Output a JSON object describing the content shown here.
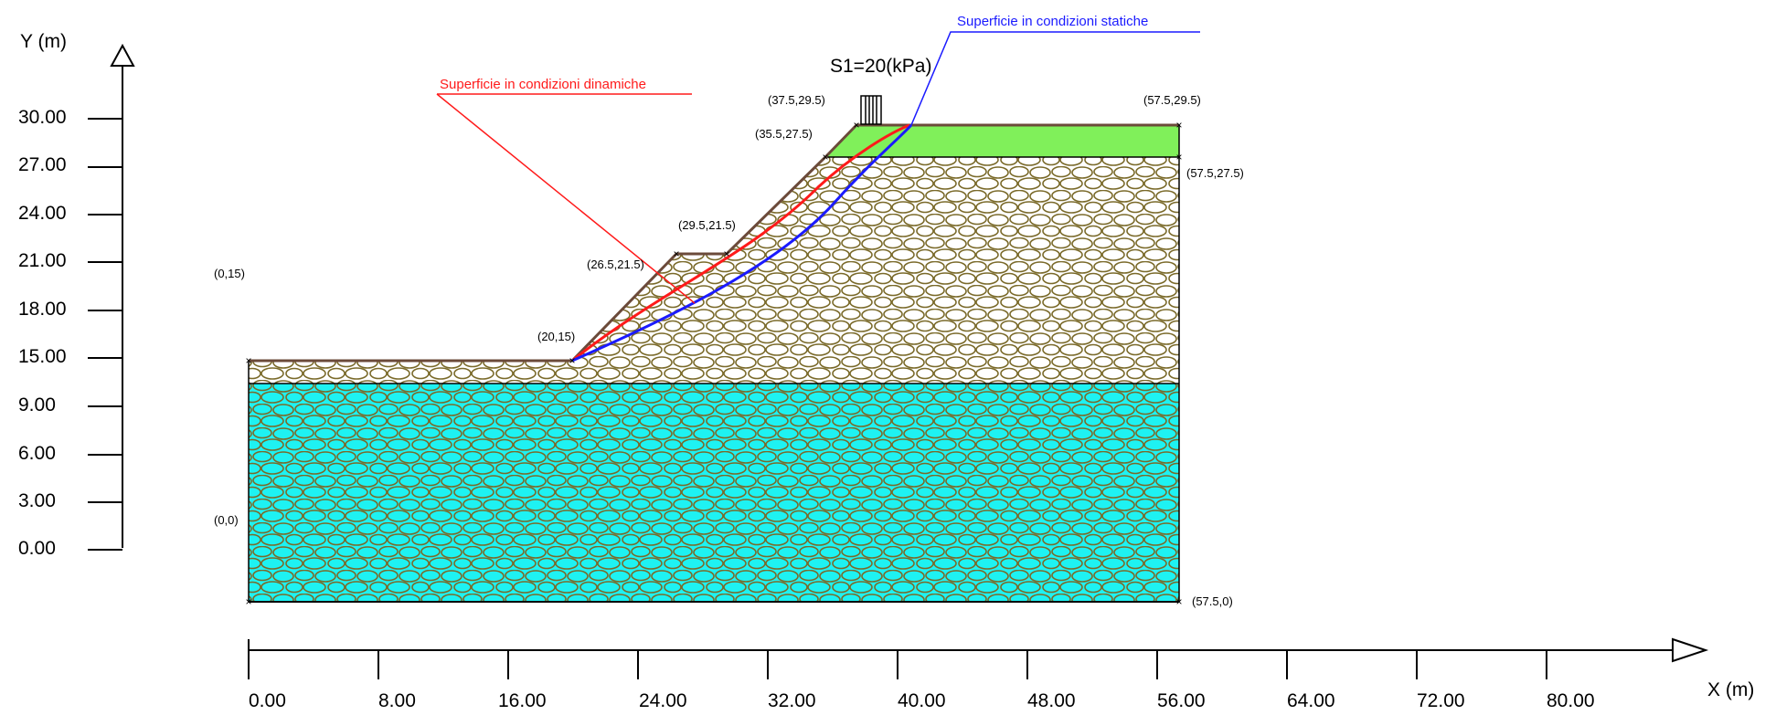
{
  "y_axis": {
    "title": "Y (m)",
    "ticks": [
      "30.00",
      "27.00",
      "24.00",
      "21.00",
      "18.00",
      "15.00",
      "9.00",
      "6.00",
      "3.00",
      "0.00"
    ]
  },
  "x_axis": {
    "title": "X (m)",
    "ticks": [
      "0.00",
      "8.00",
      "16.00",
      "24.00",
      "32.00",
      "40.00",
      "48.00",
      "56.00",
      "64.00",
      "72.00",
      "80.00"
    ]
  },
  "load": {
    "label": "S1=20(kPa)"
  },
  "surfaces": {
    "static": {
      "label": "Superficie in condizioni statiche",
      "color": "#1a1aff"
    },
    "dynamic": {
      "label": "Superficie in condizioni dinamiche",
      "color": "#ff1a1a"
    }
  },
  "points": {
    "p_0_15": "(0,15)",
    "p_0_0": "(0,0)",
    "p_20_15": "(20,15)",
    "p_26_21": "(26.5,21.5)",
    "p_29_21": "(29.5,21.5)",
    "p_35_27": "(35.5,27.5)",
    "p_37_29": "(37.5,29.5)",
    "p_57_29": "(57.5,29.5)",
    "p_57_27": "(57.5,27.5)",
    "p_57_0": "(57.5,0)"
  },
  "layers": {
    "top_fill": "#80f05a",
    "middle_fill": "#ffffff",
    "bottom_fill": "#1ef2f2",
    "pebble_stroke": "#7a6a2a",
    "surface_stroke": "#6b4a3a"
  }
}
